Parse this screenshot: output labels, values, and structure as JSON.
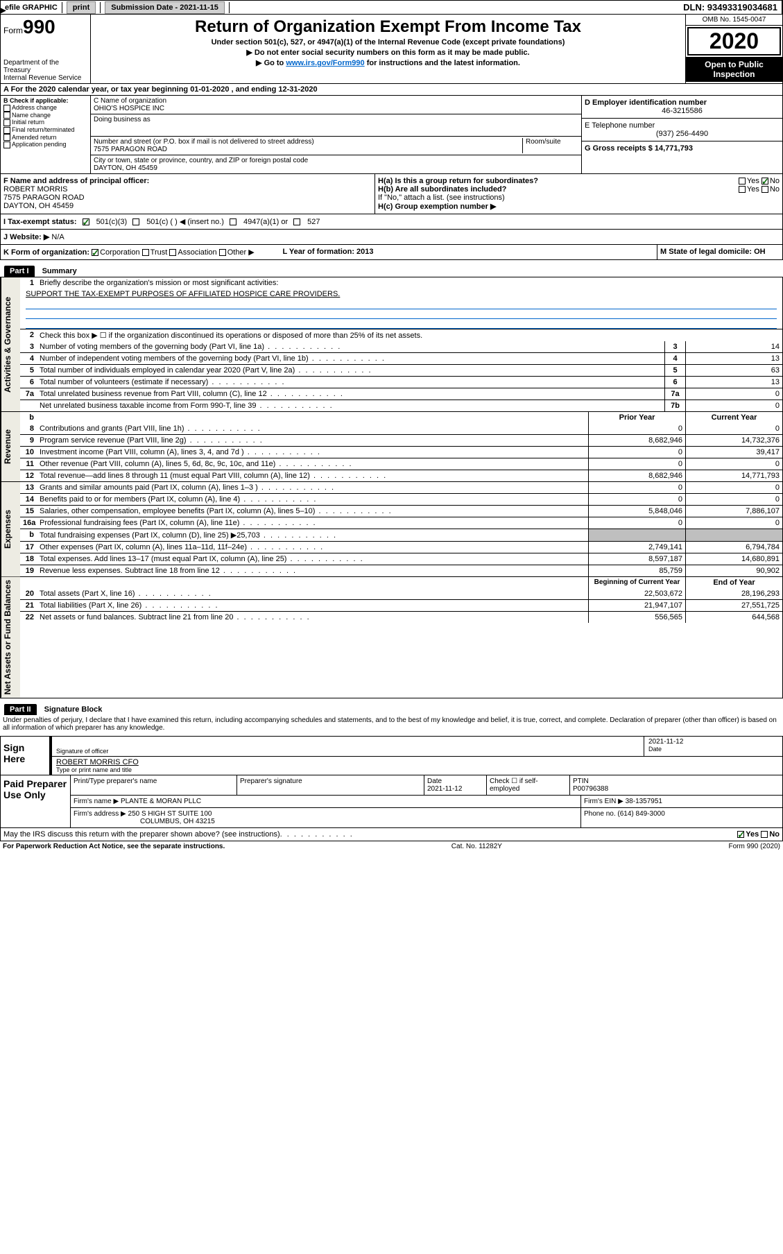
{
  "topbar": {
    "efile": "efile GRAPHIC",
    "print": "print",
    "submission_label": "Submission Date - 2021-11-15",
    "dln": "DLN: 93493319034681"
  },
  "header": {
    "form_word": "Form",
    "form_num": "990",
    "dept": "Department of the Treasury",
    "irs": "Internal Revenue Service",
    "title": "Return of Organization Exempt From Income Tax",
    "subtitle": "Under section 501(c), 527, or 4947(a)(1) of the Internal Revenue Code (except private foundations)",
    "note1": "▶ Do not enter social security numbers on this form as it may be made public.",
    "note2_pre": "▶ Go to ",
    "note2_link": "www.irs.gov/Form990",
    "note2_post": " for instructions and the latest information.",
    "omb": "OMB No. 1545-0047",
    "year": "2020",
    "open": "Open to Public Inspection"
  },
  "rowA": "A For the 2020 calendar year, or tax year beginning 01-01-2020   , and ending 12-31-2020",
  "colB": {
    "label": "B Check if applicable:",
    "items": [
      "Address change",
      "Name change",
      "Initial return",
      "Final return/terminated",
      "Amended return",
      "Application pending"
    ]
  },
  "colC": {
    "name_label": "C Name of organization",
    "name": "OHIO'S HOSPICE INC",
    "dba_label": "Doing business as",
    "street_label": "Number and street (or P.O. box if mail is not delivered to street address)",
    "room_label": "Room/suite",
    "street": "7575 PARAGON ROAD",
    "city_label": "City or town, state or province, country, and ZIP or foreign postal code",
    "city": "DAYTON, OH  45459"
  },
  "colD": {
    "ein_label": "D Employer identification number",
    "ein": "46-3215586",
    "phone_label": "E Telephone number",
    "phone": "(937) 256-4490",
    "gross_label": "G Gross receipts $ 14,771,793"
  },
  "rowF": {
    "label": "F  Name and address of principal officer:",
    "name": "ROBERT MORRIS",
    "street": "7575 PARAGON ROAD",
    "city": "DAYTON, OH  45459"
  },
  "rowH": {
    "ha": "H(a)  Is this a group return for subordinates?",
    "hb": "H(b)  Are all subordinates included?",
    "hb_note": "If \"No,\" attach a list. (see instructions)",
    "hc": "H(c)  Group exemption number ▶",
    "yes": "Yes",
    "no": "No"
  },
  "rowI": {
    "label": "I    Tax-exempt status:",
    "o1": "501(c)(3)",
    "o2": "501(c) (  ) ◀ (insert no.)",
    "o3": "4947(a)(1) or",
    "o4": "527"
  },
  "rowJ": {
    "label": "J   Website: ▶",
    "val": "N/A"
  },
  "rowK": {
    "k": "K Form of organization:",
    "corp": "Corporation",
    "trust": "Trust",
    "assoc": "Association",
    "other": "Other ▶",
    "l": "L Year of formation: 2013",
    "m": "M State of legal domicile: OH"
  },
  "partI": {
    "num": "Part I",
    "title": "Summary"
  },
  "partII": {
    "num": "Part II",
    "title": "Signature Block"
  },
  "sections": {
    "gov": "Activities & Governance",
    "rev": "Revenue",
    "exp": "Expenses",
    "net": "Net Assets or Fund Balances"
  },
  "line1": {
    "num": "1",
    "desc": "Briefly describe the organization's mission or most significant activities:",
    "val": "SUPPORT THE TAX-EXEMPT PURPOSES OF AFFILIATED HOSPICE CARE PROVIDERS."
  },
  "line2": {
    "num": "2",
    "desc": "Check this box ▶ ☐  if the organization discontinued its operations or disposed of more than 25% of its net assets."
  },
  "lines": [
    {
      "n": "3",
      "d": "Number of voting members of the governing body (Part VI, line 1a)",
      "box": "3",
      "v": "14"
    },
    {
      "n": "4",
      "d": "Number of independent voting members of the governing body (Part VI, line 1b)",
      "box": "4",
      "v": "13"
    },
    {
      "n": "5",
      "d": "Total number of individuals employed in calendar year 2020 (Part V, line 2a)",
      "box": "5",
      "v": "63"
    },
    {
      "n": "6",
      "d": "Total number of volunteers (estimate if necessary)",
      "box": "6",
      "v": "13"
    },
    {
      "n": "7a",
      "d": "Total unrelated business revenue from Part VIII, column (C), line 12",
      "box": "7a",
      "v": "0"
    },
    {
      "n": "",
      "d": "Net unrelated business taxable income from Form 990-T, line 39",
      "box": "7b",
      "v": "0"
    }
  ],
  "twocol_hdr": {
    "b": "b",
    "prior": "Prior Year",
    "curr": "Current Year"
  },
  "rev_lines": [
    {
      "n": "8",
      "d": "Contributions and grants (Part VIII, line 1h)",
      "p": "0",
      "c": "0"
    },
    {
      "n": "9",
      "d": "Program service revenue (Part VIII, line 2g)",
      "p": "8,682,946",
      "c": "14,732,376"
    },
    {
      "n": "10",
      "d": "Investment income (Part VIII, column (A), lines 3, 4, and 7d )",
      "p": "0",
      "c": "39,417"
    },
    {
      "n": "11",
      "d": "Other revenue (Part VIII, column (A), lines 5, 6d, 8c, 9c, 10c, and 11e)",
      "p": "0",
      "c": "0"
    },
    {
      "n": "12",
      "d": "Total revenue—add lines 8 through 11 (must equal Part VIII, column (A), line 12)",
      "p": "8,682,946",
      "c": "14,771,793"
    }
  ],
  "exp_lines": [
    {
      "n": "13",
      "d": "Grants and similar amounts paid (Part IX, column (A), lines 1–3 )",
      "p": "0",
      "c": "0"
    },
    {
      "n": "14",
      "d": "Benefits paid to or for members (Part IX, column (A), line 4)",
      "p": "0",
      "c": "0"
    },
    {
      "n": "15",
      "d": "Salaries, other compensation, employee benefits (Part IX, column (A), lines 5–10)",
      "p": "5,848,046",
      "c": "7,886,107"
    },
    {
      "n": "16a",
      "d": "Professional fundraising fees (Part IX, column (A), line 11e)",
      "p": "0",
      "c": "0"
    },
    {
      "n": "b",
      "d": "Total fundraising expenses (Part IX, column (D), line 25) ▶25,703",
      "p": "",
      "c": "",
      "gray": true
    },
    {
      "n": "17",
      "d": "Other expenses (Part IX, column (A), lines 11a–11d, 11f–24e)",
      "p": "2,749,141",
      "c": "6,794,784"
    },
    {
      "n": "18",
      "d": "Total expenses. Add lines 13–17 (must equal Part IX, column (A), line 25)",
      "p": "8,597,187",
      "c": "14,680,891"
    },
    {
      "n": "19",
      "d": "Revenue less expenses. Subtract line 18 from line 12",
      "p": "85,759",
      "c": "90,902"
    }
  ],
  "net_hdr": {
    "prior": "Beginning of Current Year",
    "curr": "End of Year"
  },
  "net_lines": [
    {
      "n": "20",
      "d": "Total assets (Part X, line 16)",
      "p": "22,503,672",
      "c": "28,196,293"
    },
    {
      "n": "21",
      "d": "Total liabilities (Part X, line 26)",
      "p": "21,947,107",
      "c": "27,551,725"
    },
    {
      "n": "22",
      "d": "Net assets or fund balances. Subtract line 21 from line 20",
      "p": "556,565",
      "c": "644,568"
    }
  ],
  "penalties": "Under penalties of perjury, I declare that I have examined this return, including accompanying schedules and statements, and to the best of my knowledge and belief, it is true, correct, and complete. Declaration of preparer (other than officer) is based on all information of which preparer has any knowledge.",
  "sign": {
    "here": "Sign Here",
    "sig_label": "Signature of officer",
    "date_label": "Date",
    "date": "2021-11-12",
    "name": "ROBERT MORRIS CFO",
    "name_label": "Type or print name and title"
  },
  "preparer": {
    "title": "Paid Preparer Use Only",
    "h1": "Print/Type preparer's name",
    "h2": "Preparer's signature",
    "h3": "Date",
    "h3v": "2021-11-12",
    "h4": "Check ☐ if self-employed",
    "h5": "PTIN",
    "h5v": "P00796388",
    "firm_label": "Firm's name    ▶",
    "firm": "PLANTE & MORAN PLLC",
    "ein_label": "Firm's EIN ▶",
    "ein": "38-1357951",
    "addr_label": "Firm's address ▶",
    "addr1": "250 S HIGH ST SUITE 100",
    "addr2": "COLUMBUS, OH  43215",
    "phone_label": "Phone no.",
    "phone": "(614) 849-3000"
  },
  "discuss": {
    "q": "May the IRS discuss this return with the preparer shown above? (see instructions)",
    "yes": "Yes",
    "no": "No"
  },
  "bottom": {
    "left": "For Paperwork Reduction Act Notice, see the separate instructions.",
    "mid": "Cat. No. 11282Y",
    "right": "Form 990 (2020)"
  }
}
